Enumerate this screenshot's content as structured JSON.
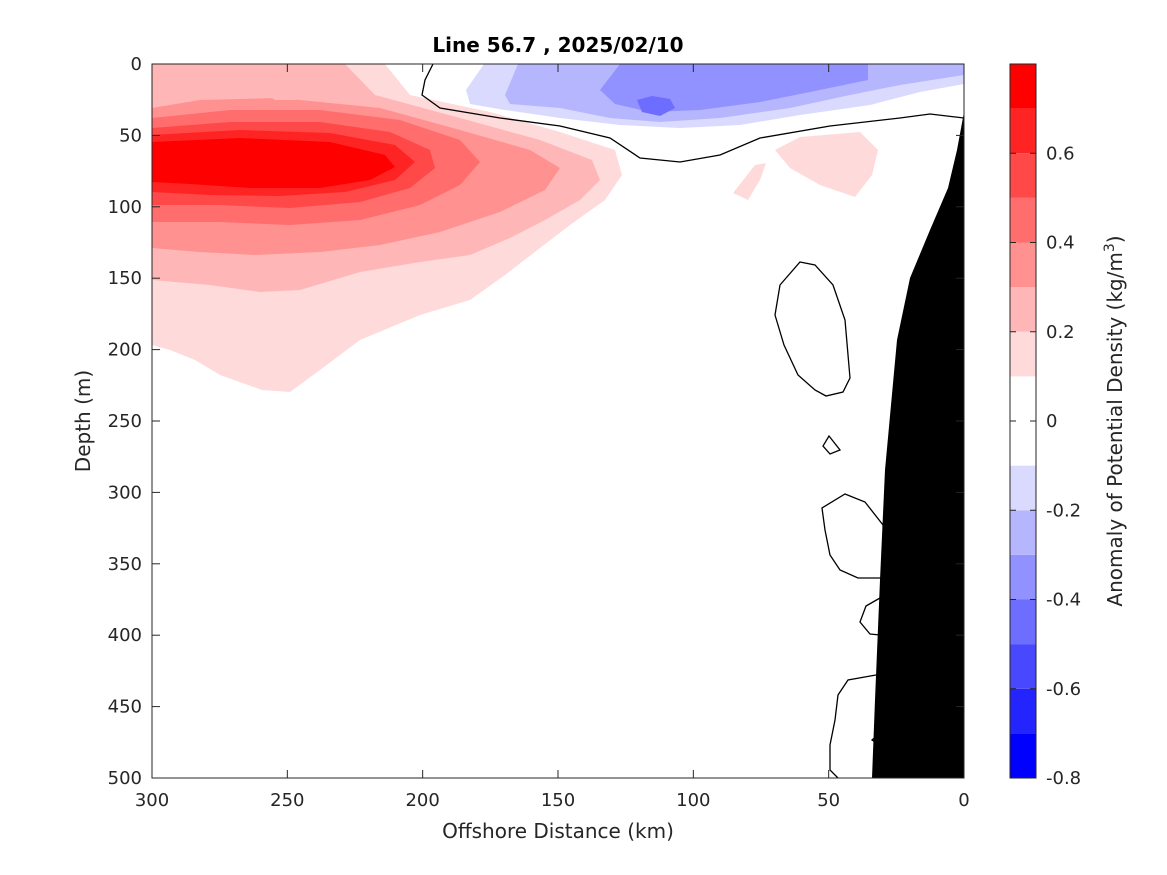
{
  "chart_data": {
    "type": "heatmap",
    "subtype": "filled-contour depth section",
    "title": "Line 56.7 , 2025/02/10",
    "xlabel": "Offshore Distance (km)",
    "ylabel": "Depth (m)",
    "x_axis": {
      "range": [
        300,
        0
      ],
      "reversed": true,
      "ticks": [
        300,
        250,
        200,
        150,
        100,
        50,
        0
      ],
      "tick_labels": [
        "300",
        "250",
        "200",
        "150",
        "100",
        "50",
        "0"
      ]
    },
    "y_axis": {
      "range": [
        0,
        500
      ],
      "reversed": true,
      "ticks": [
        0,
        50,
        100,
        150,
        200,
        250,
        300,
        350,
        400,
        450,
        500
      ],
      "tick_labels": [
        "0",
        "50",
        "100",
        "150",
        "200",
        "250",
        "300",
        "350",
        "400",
        "450",
        "500"
      ]
    },
    "colorbar": {
      "label": "Anomaly of Potential Density (kg/m",
      "label_superscript": "3",
      "label_suffix": ")",
      "range": [
        -0.8,
        0.8
      ],
      "ticks": [
        0.6,
        0.4,
        0.2,
        0,
        -0.2,
        -0.4,
        -0.6,
        -0.8
      ],
      "tick_labels": [
        "0.6",
        "0.4",
        "0.2",
        "0",
        "-0.2",
        "-0.4",
        "-0.6",
        "-0.8"
      ],
      "levels": [
        -0.8,
        -0.7,
        -0.6,
        -0.5,
        -0.4,
        -0.3,
        -0.2,
        -0.1,
        0.1,
        0.2,
        0.3,
        0.4,
        0.5,
        0.6,
        0.7,
        0.8
      ],
      "colors": [
        "#0000ff",
        "#2424ff",
        "#4848ff",
        "#6d6dff",
        "#9191ff",
        "#b6b6ff",
        "#dadaff",
        "#ffffff",
        "#ffffff",
        "#ffdada",
        "#ffb6b6",
        "#ff9191",
        "#ff6d6d",
        "#ff4848",
        "#ff2424",
        "#ff0000"
      ]
    },
    "features": {
      "max_positive_anomaly": {
        "value": 0.75,
        "center_distance_km": 265,
        "center_depth_m": 70
      },
      "positive_anomaly_extent": {
        "distance_km": [
          300,
          125
        ],
        "depth_m": [
          0,
          230
        ]
      },
      "min_negative_anomaly": {
        "value": -0.45,
        "center_distance_km": 115,
        "center_depth_m": 30
      },
      "negative_anomaly_extent": {
        "distance_km": [
          180,
          0
        ],
        "depth_m": [
          0,
          50
        ]
      },
      "zero_contour": "black line",
      "bathymetry_fill": "#000000"
    }
  }
}
